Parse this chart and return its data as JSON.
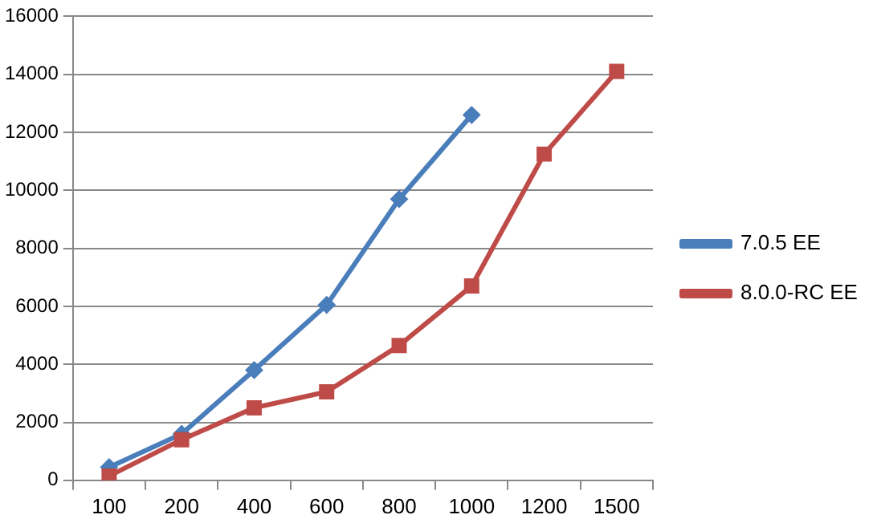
{
  "chart_data": {
    "type": "line",
    "categories": [
      "100",
      "200",
      "400",
      "600",
      "800",
      "1000",
      "1200",
      "1500"
    ],
    "series": [
      {
        "name": "7.0.5 EE",
        "color": "#4a7ebb",
        "marker": "diamond",
        "values": [
          450,
          1600,
          3800,
          6050,
          9700,
          12600,
          null,
          null
        ]
      },
      {
        "name": "8.0.0-RC EE",
        "color": "#be4b48",
        "marker": "square",
        "values": [
          150,
          1400,
          2500,
          3050,
          4650,
          6700,
          11250,
          14100
        ]
      }
    ],
    "ylim": [
      0,
      16000
    ],
    "yticks": [
      0,
      2000,
      4000,
      6000,
      8000,
      10000,
      12000,
      14000,
      16000
    ],
    "grid": "y",
    "legend": "right",
    "line_style": "solid"
  }
}
